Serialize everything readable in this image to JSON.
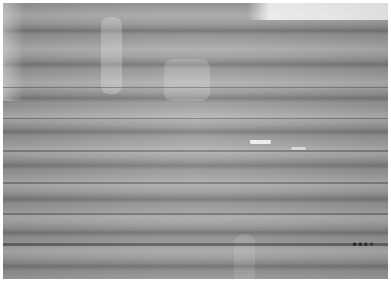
{
  "image": {
    "kind": "grayscale photo with horizontal scanline/banding artifacts"
  }
}
